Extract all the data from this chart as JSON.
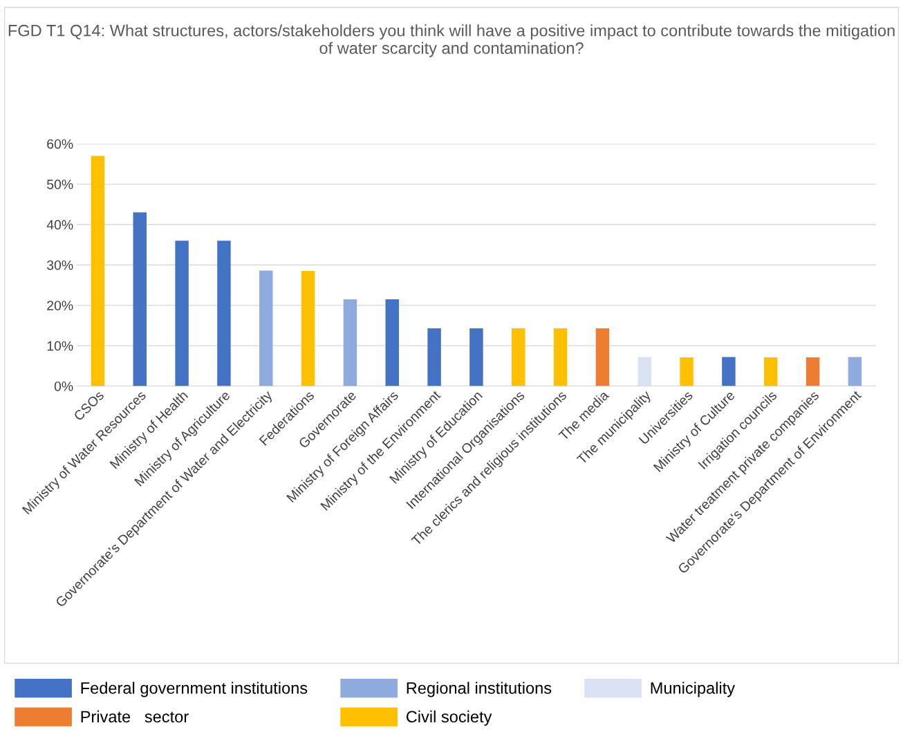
{
  "chart_data": {
    "type": "bar",
    "title": "FGD T1 Q14: What structures, actors/stakeholders you think will have a positive impact to contribute towards the mitigation of water scarcity and contamination?",
    "categories": [
      "CSOs",
      "Ministry of Water Resources",
      "Ministry of Health",
      "Ministry of Agriculture",
      "Governorate's Department of Water and Electricity",
      "Federations",
      "Governorate",
      "Ministry of Foreign Affairs",
      "Ministry of the Environment",
      "Ministry of Education",
      "International Organisations",
      "The clerics and religious institutions",
      "The media",
      "The municipality",
      "Universities",
      "Ministry of Culture",
      "Irrigation councils",
      "Water treatment private companies",
      "Governorate's Department of Environment"
    ],
    "series": [
      {
        "name": "Federal government institutions",
        "color": "#4472c4",
        "values": [
          null,
          43,
          36,
          36,
          null,
          null,
          null,
          21.5,
          14.3,
          14.3,
          null,
          null,
          null,
          null,
          null,
          7.2,
          null,
          null,
          null
        ]
      },
      {
        "name": "Regional institutions",
        "color": "#8faadc",
        "values": [
          null,
          null,
          null,
          null,
          28.6,
          null,
          21.5,
          null,
          null,
          null,
          null,
          null,
          null,
          null,
          null,
          null,
          null,
          null,
          7.2
        ]
      },
      {
        "name": "Municipality",
        "color": "#dae3f3",
        "values": [
          null,
          null,
          null,
          null,
          null,
          null,
          null,
          null,
          null,
          null,
          null,
          null,
          null,
          7.2,
          null,
          null,
          null,
          null,
          null
        ]
      },
      {
        "name": "Private   sector",
        "color": "#ed7d31",
        "values": [
          null,
          null,
          null,
          null,
          null,
          null,
          null,
          null,
          null,
          null,
          null,
          null,
          14.3,
          null,
          null,
          null,
          null,
          7.1,
          null
        ]
      },
      {
        "name": "Civil society",
        "color": "#ffc000",
        "values": [
          57,
          null,
          null,
          null,
          null,
          28.5,
          null,
          null,
          null,
          null,
          14.3,
          14.3,
          null,
          null,
          7.1,
          null,
          7.1,
          null,
          null
        ]
      }
    ],
    "ylim": [
      0,
      60
    ],
    "yticks": [
      {
        "value": 0,
        "label": "0%"
      },
      {
        "value": 10,
        "label": "10%"
      },
      {
        "value": 20,
        "label": "20%"
      },
      {
        "value": 30,
        "label": "30%"
      },
      {
        "value": 40,
        "label": "40%"
      },
      {
        "value": 50,
        "label": "50%"
      },
      {
        "value": 60,
        "label": "60%"
      }
    ],
    "grid": "y",
    "legend": "bottom"
  }
}
